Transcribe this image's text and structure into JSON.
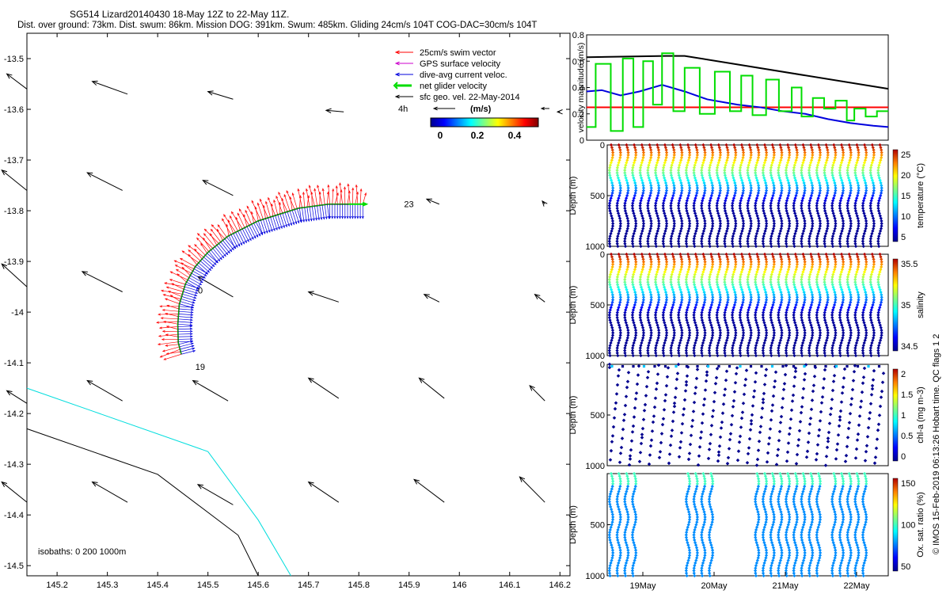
{
  "header": {
    "title": "SG514 Lizard20140430 18-May 12Z to 22-May 11Z.",
    "subtitle": "Dist. over ground: 73km. Dist. swum: 86km. Mission DOG: 391km. Swum: 485km. Gliding 24cm/s 104T COG-DAC=30cm/s 104T"
  },
  "footer": {
    "credit": "© IMOS 15-Feb-2019 06:13:26 Hobart time. QC flags 1 2"
  },
  "colors": {
    "swim": "#ff0000",
    "gps": "#cc00cc",
    "dac": "#0000dd",
    "net": "#00dd00",
    "sfc": "#000000",
    "iso0": "#00dddd",
    "iso200": "#000000",
    "vel_red": "#ff0000"
  },
  "chart_data": [
    {
      "type": "vector_map",
      "xlim": [
        145.14,
        146.22
      ],
      "ylim": [
        -14.52,
        -13.45
      ],
      "x_ticks": [
        "145.2",
        "145.3",
        "145.4",
        "145.5",
        "145.6",
        "145.7",
        "145.8",
        "145.9",
        "146",
        "146.1",
        "146.2"
      ],
      "y_ticks": [
        "-13.5",
        "-13.6",
        "-13.7",
        "-13.8",
        "-13.9",
        "-14",
        "-14.1",
        "-14.2",
        "-14.3",
        "-14.4",
        "-14.5"
      ],
      "legend": {
        "entries": [
          "25cm/s swim vector",
          "GPS surface velocity",
          "dive-avg current veloc.",
          "net glider velocity",
          "sfc geo. vel. 22-May-2014"
        ],
        "scale_label": "4h",
        "units": "(m/s)",
        "colorbar_ticks": [
          "0",
          "0.2",
          "0.4"
        ],
        "position": "top-right"
      },
      "annotations": [
        "23",
        "0",
        "19"
      ],
      "isobath_label": "isobaths: 0   200   1000m",
      "track": [
        [
          145.808,
          -13.787
        ],
        [
          145.74,
          -13.787
        ],
        [
          145.68,
          -13.795
        ],
        [
          145.6,
          -13.82
        ],
        [
          145.54,
          -13.85
        ],
        [
          145.5,
          -13.882
        ],
        [
          145.475,
          -13.91
        ],
        [
          145.455,
          -13.945
        ],
        [
          145.443,
          -13.985
        ],
        [
          145.44,
          -14.025
        ],
        [
          145.441,
          -14.06
        ],
        [
          145.447,
          -14.083
        ]
      ],
      "sfc_vectors": [
        {
          "x": 145.14,
          "y": -13.56,
          "dx": 0.04,
          "dy": -0.03
        },
        {
          "x": 145.34,
          "y": -13.57,
          "dx": 0.07,
          "dy": -0.025
        },
        {
          "x": 145.55,
          "y": -13.58,
          "dx": 0.05,
          "dy": -0.015
        },
        {
          "x": 145.77,
          "y": -13.605,
          "dx": 0.035,
          "dy": -0.003
        },
        {
          "x": 146.2,
          "y": -13.605,
          "dx": 0.005,
          "dy": 0
        },
        {
          "x": 145.14,
          "y": -13.76,
          "dx": 0.05,
          "dy": -0.04
        },
        {
          "x": 145.33,
          "y": -13.76,
          "dx": 0.07,
          "dy": -0.035
        },
        {
          "x": 145.55,
          "y": -13.77,
          "dx": 0.06,
          "dy": -0.03
        },
        {
          "x": 145.96,
          "y": -13.787,
          "dx": 0.025,
          "dy": -0.01
        },
        {
          "x": 146.17,
          "y": -13.787,
          "dx": 0.005,
          "dy": -0.006
        },
        {
          "x": 145.14,
          "y": -13.95,
          "dx": 0.05,
          "dy": -0.045
        },
        {
          "x": 145.33,
          "y": -13.96,
          "dx": 0.08,
          "dy": -0.04
        },
        {
          "x": 145.55,
          "y": -13.97,
          "dx": 0.07,
          "dy": -0.04
        },
        {
          "x": 145.76,
          "y": -13.98,
          "dx": 0.06,
          "dy": -0.02
        },
        {
          "x": 145.96,
          "y": -13.98,
          "dx": 0.03,
          "dy": -0.015
        },
        {
          "x": 146.17,
          "y": -13.98,
          "dx": 0.02,
          "dy": -0.015
        },
        {
          "x": 145.14,
          "y": -14.18,
          "dx": 0.04,
          "dy": -0.025
        },
        {
          "x": 145.33,
          "y": -14.175,
          "dx": 0.07,
          "dy": -0.04
        },
        {
          "x": 145.54,
          "y": -14.175,
          "dx": 0.07,
          "dy": -0.04
        },
        {
          "x": 145.76,
          "y": -14.17,
          "dx": 0.06,
          "dy": -0.04
        },
        {
          "x": 145.97,
          "y": -14.17,
          "dx": 0.05,
          "dy": -0.04
        },
        {
          "x": 146.17,
          "y": -14.175,
          "dx": 0.03,
          "dy": -0.03
        },
        {
          "x": 145.14,
          "y": -14.375,
          "dx": 0.05,
          "dy": -0.04
        },
        {
          "x": 145.34,
          "y": -14.375,
          "dx": 0.07,
          "dy": -0.04
        },
        {
          "x": 145.55,
          "y": -14.38,
          "dx": 0.07,
          "dy": -0.04
        },
        {
          "x": 145.76,
          "y": -14.375,
          "dx": 0.06,
          "dy": -0.04
        },
        {
          "x": 145.97,
          "y": -14.375,
          "dx": 0.06,
          "dy": -0.045
        },
        {
          "x": 146.17,
          "y": -14.375,
          "dx": 0.05,
          "dy": -0.05
        }
      ],
      "isobaths": [
        {
          "depth": "0",
          "points": [
            [
              145.14,
              -14.15
            ],
            [
              145.27,
              -14.195
            ],
            [
              145.5,
              -14.275
            ],
            [
              145.6,
              -14.41
            ],
            [
              145.665,
              -14.52
            ]
          ]
        },
        {
          "depth": "200",
          "points": [
            [
              145.14,
              -14.23
            ],
            [
              145.4,
              -14.32
            ],
            [
              145.56,
              -14.44
            ],
            [
              145.6,
              -14.52
            ]
          ]
        }
      ]
    },
    {
      "type": "line",
      "ylabel": "velocity magnitude (m/s)",
      "ylim": [
        0,
        0.8
      ],
      "y_ticks": [
        "0",
        "0.2",
        "0.4",
        "0.6",
        "0.8"
      ],
      "xlim": [
        0,
        4
      ],
      "series": [
        {
          "name": "black",
          "x": [
            0,
            1.05,
            1.3,
            4
          ],
          "values": [
            0.63,
            0.64,
            0.64,
            0.39
          ]
        },
        {
          "name": "red",
          "x": [
            0,
            4
          ],
          "values": [
            0.25,
            0.25
          ]
        },
        {
          "name": "blue",
          "x": [
            0,
            0.2,
            0.45,
            0.7,
            1.0,
            1.3,
            1.6,
            2.0,
            2.3,
            2.6,
            2.9,
            3.2,
            3.5,
            3.8,
            4.0
          ],
          "values": [
            0.37,
            0.38,
            0.34,
            0.37,
            0.42,
            0.37,
            0.31,
            0.27,
            0.25,
            0.22,
            0.2,
            0.16,
            0.13,
            0.11,
            0.1
          ]
        },
        {
          "name": "green_steps",
          "x": [
            0,
            0.12,
            0.12,
            0.32,
            0.32,
            0.48,
            0.48,
            0.62,
            0.62,
            0.75,
            0.75,
            0.88,
            0.88,
            1.0,
            1.0,
            1.15,
            1.15,
            1.3,
            1.3,
            1.5,
            1.5,
            1.7,
            1.7,
            1.9,
            1.9,
            2.05,
            2.05,
            2.2,
            2.2,
            2.38,
            2.38,
            2.55,
            2.55,
            2.72,
            2.72,
            2.85,
            2.85,
            3.0,
            3.0,
            3.15,
            3.15,
            3.3,
            3.3,
            3.45,
            3.45,
            3.55,
            3.55,
            3.7,
            3.7,
            3.85,
            3.85,
            4.0
          ],
          "values": [
            0.1,
            0.1,
            0.58,
            0.58,
            0.07,
            0.07,
            0.62,
            0.62,
            0.1,
            0.1,
            0.6,
            0.6,
            0.27,
            0.27,
            0.66,
            0.66,
            0.22,
            0.22,
            0.55,
            0.55,
            0.2,
            0.2,
            0.52,
            0.52,
            0.22,
            0.22,
            0.49,
            0.49,
            0.19,
            0.19,
            0.46,
            0.46,
            0.22,
            0.22,
            0.4,
            0.4,
            0.18,
            0.18,
            0.32,
            0.32,
            0.24,
            0.24,
            0.3,
            0.3,
            0.15,
            0.15,
            0.24,
            0.24,
            0.18,
            0.18,
            0.22,
            0.22
          ]
        }
      ]
    },
    {
      "type": "profile_scatter",
      "variable": "temperature",
      "ylabel": "Depth (m)",
      "clabel": "temperature (°C)",
      "ylim": [
        1000,
        0
      ],
      "y_ticks": [
        "0",
        "500",
        "1000"
      ],
      "c_ticks": [
        "25",
        "20",
        "15",
        "10",
        "5"
      ],
      "profiles": 36,
      "max_depth": 1000
    },
    {
      "type": "profile_scatter",
      "variable": "salinity",
      "ylabel": "Depth (m)",
      "clabel": "salinity",
      "ylim": [
        1000,
        0
      ],
      "y_ticks": [
        "0",
        "500",
        "1000"
      ],
      "c_ticks": [
        "35.5",
        "35",
        "34.5"
      ],
      "profiles": 36,
      "max_depth": 1000
    },
    {
      "type": "profile_scatter",
      "variable": "chl-a",
      "ylabel": "Depth (m)",
      "clabel": "chl-a (mg m-3)",
      "ylim": [
        1000,
        0
      ],
      "y_ticks": [
        "0",
        "500",
        "1000"
      ],
      "c_ticks": [
        "2",
        "1.5",
        "1",
        "0.5",
        "0"
      ],
      "profiles": 36,
      "max_depth": 1000
    },
    {
      "type": "profile_scatter",
      "variable": "oxygen",
      "ylabel": "Depth (m)",
      "clabel": "Ox. sat. ratio (%)",
      "ylim": [
        1000,
        0
      ],
      "y_ticks": [
        "500",
        "1000"
      ],
      "c_ticks": [
        "150",
        "100",
        "50"
      ],
      "x_ticks": [
        "19May",
        "20May",
        "21May",
        "22May"
      ],
      "groups": [
        [
          0,
          3
        ],
        [
          10,
          13
        ],
        [
          19,
          21
        ],
        [
          22,
          27
        ],
        [
          29,
          33
        ]
      ],
      "max_depth": 1000
    }
  ]
}
